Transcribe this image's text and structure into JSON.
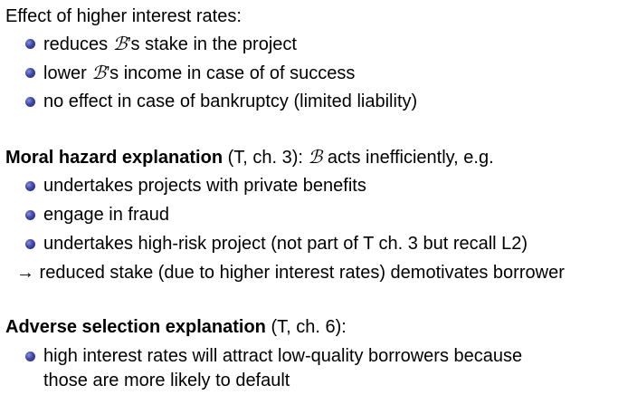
{
  "section1": {
    "heading": "Effect of higher interest rates:",
    "items": [
      {
        "pre": "reduces ",
        "sym": "ℬ",
        "post": "’s stake in the project"
      },
      {
        "pre": "lower ",
        "sym": "ℬ",
        "post": "’s income in case of of success"
      },
      {
        "pre": "no effect in case of bankruptcy (limited liability)",
        "sym": "",
        "post": ""
      }
    ]
  },
  "section2": {
    "heading_bold": "Moral hazard explanation",
    "heading_rest_pre": " (T, ch. 3): ",
    "heading_sym": "ℬ",
    "heading_rest_post": " acts inefficiently, e.g.",
    "items": [
      "undertakes projects with private benefits",
      "engage in fraud",
      "undertakes high-risk project (not part of T ch. 3 but recall L2)"
    ],
    "arrow": "→",
    "conclusion": " reduced stake (due to higher interest rates) demotivates borrower"
  },
  "section3": {
    "heading_bold": "Adverse selection explanation",
    "heading_rest": " (T, ch. 6):",
    "items": [
      {
        "line1": "high interest rates will attract low-quality borrowers because",
        "line2": "those are more likely to default"
      }
    ]
  },
  "colors": {
    "bullet": "#3f46a8",
    "text": "#000000",
    "background": "#ffffff"
  }
}
